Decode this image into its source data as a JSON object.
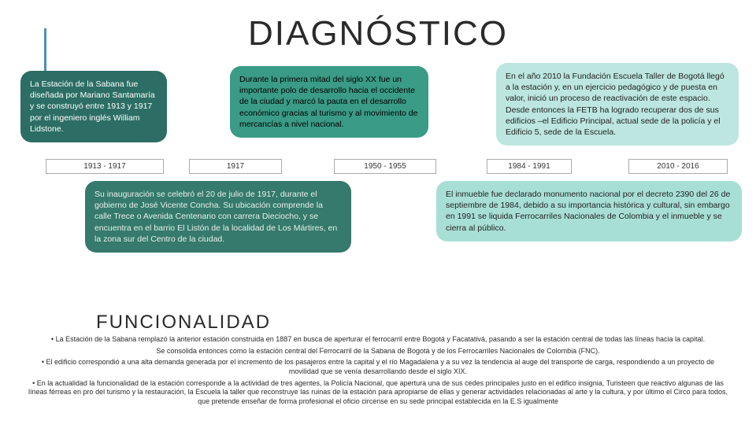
{
  "title": "DIAGNÓSTICO",
  "bubbles": {
    "b1": "La Estación de la Sabana fue diseñada por Mariano Santamaría y se construyó entre 1913 y 1917 por el ingeniero inglés William Lidstone.",
    "b2": "Durante la primera mitad del siglo XX fue un importante polo de desarrollo hacia el occidente de la ciudad y marcó la pauta en el desarrollo económico gracias al turismo y al movimiento de mercancías a nivel nacional.",
    "b3": "En el año 2010 la Fundación Escuela Taller de Bogotá llegó a la estación y, en un ejercicio pedagógico y de puesta en valor, inició un proceso de reactivación de este espacio. Desde entonces la FETB ha logrado recuperar dos de sus edificios –el Edificio Principal, actual sede de la policía y el Edificio 5, sede de la Escuela.",
    "b4": "Su inauguración se celebró el 20 de julio de 1917, durante el gobierno de José Vicente Concha. Su ubicación comprende la calle Trece o Avenida Centenario con carrera Dieciocho, y se encuentra en el barrio El Listón de la localidad de Los Mártires, en la zona sur del Centro de la ciudad.",
    "b5": "El inmueble fue declarado monumento nacional por el decreto 2390 del 26 de septiembre de 1984, debido a su importancia histórica y cultural, sin embargo en 1991 se liquida Ferrocarriles Nacionales de Colombia y el inmueble y se cierra al público."
  },
  "dates": {
    "d1": "1913 - 1917",
    "d2": "1917",
    "d3": "1950 - 1955",
    "d4": "1984 - 1991",
    "d5": "2010 - 2016"
  },
  "func_title": "FUNCIONALIDAD",
  "func_items": {
    "f1": "• La Estación de la Sabana remplazó la anterior estación construida en 1887 en busca de aperturar el ferrocarril entre Bogotá y Facatativá, pasando a ser la estación central de todas las líneas hacia la capital.",
    "f2": "Se consolida entonces como la estación central del Ferrocarril de la Sabana de Bogotá y de los Ferrocarriles Nacionales de Colombia (FNC).",
    "f3": "• El edificio correspondió a una alta demanda generada por el incremento de los pasajeros entre la capital y el río Magadalena y a su vez la tendencia al auge del transporte de carga, respondiendo a un proyecto de movilidad que se venía desarrollando desde el siglo XIX.",
    "f4": "• En la actualidad la funcionalidad de la estación corresponde a la actividad de tres agentes, la Policía Nacional, que apertura una de sus cedes principales justo en el edifico insignia, Turisteen que reactivo algunas de las líneas férreas en pro del turismo y la restauración, la Escuela la taller que reconstruye las ruinas de la estación para apropiarse de ellas y generar actividades relacionadas al arte y la cultura, y por último el Circo para todos, que pretende enseñar de forma profesional el oficio circense en su sede principal establecida en la E.S igualmente"
  },
  "colors": {
    "bubble1_bg": "#2c6e65",
    "bubble2_bg": "#3a9b86",
    "bubble3_bg": "#bce6df",
    "bubble4_bg": "#357a6c",
    "bubble5_bg": "#a8dfd5",
    "accent": "#4a8fb5",
    "text_dark": "#2a2a2a",
    "date_border": "#aaaaaa"
  }
}
